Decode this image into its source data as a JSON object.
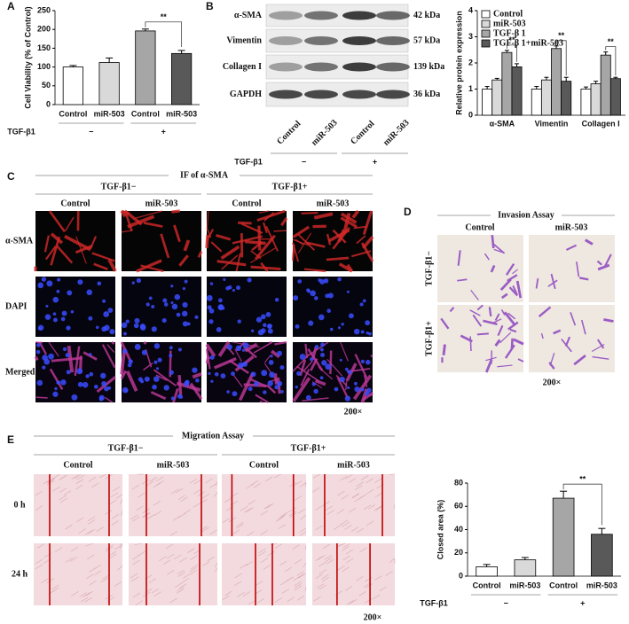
{
  "panel_labels": [
    "A",
    "B",
    "C",
    "D",
    "E"
  ],
  "chart_data": [
    {
      "type": "bar",
      "ylabel": "Cell Viability (% of Control)",
      "categories": [
        "Control",
        "miR-503",
        "Control",
        "miR-503"
      ],
      "values": [
        100,
        112,
        196,
        136
      ],
      "errors": [
        4,
        12,
        5,
        8
      ],
      "colors": [
        "#ffffff",
        "#d9d9d9",
        "#a6a6a6",
        "#595959"
      ],
      "ylim": [
        0,
        250
      ],
      "yticks": [
        0,
        50,
        100,
        150,
        200,
        250
      ],
      "group_label": "TGF-β1",
      "groups": [
        "−",
        "+"
      ],
      "annotations": [
        "**"
      ]
    },
    {
      "type": "bar",
      "ylabel": "Relative protein expression",
      "categories": [
        "α-SMA",
        "Vimentin",
        "Collagen I"
      ],
      "series": [
        {
          "name": "Control",
          "color": "#ffffff",
          "values": [
            1.0,
            1.0,
            1.0
          ],
          "errors": [
            0.1,
            0.1,
            0.08
          ]
        },
        {
          "name": "miR-503",
          "color": "#d9d9d9",
          "values": [
            1.35,
            1.35,
            1.2
          ],
          "errors": [
            0.06,
            0.1,
            0.1
          ]
        },
        {
          "name": "TGF-β 1",
          "color": "#a6a6a6",
          "values": [
            2.4,
            2.55,
            2.3
          ],
          "errors": [
            0.08,
            0.1,
            0.12
          ]
        },
        {
          "name": "TGF-β 1+miR-503",
          "color": "#595959",
          "values": [
            1.85,
            1.3,
            1.4
          ],
          "errors": [
            0.12,
            0.15,
            0.05
          ]
        }
      ],
      "ylim": [
        0,
        4
      ],
      "yticks": [
        0,
        1,
        2,
        3,
        4
      ],
      "legend": "upper left",
      "annotations": [
        "**",
        "**",
        "**"
      ]
    },
    {
      "type": "bar",
      "ylabel": "Closed area (%)",
      "categories": [
        "Control",
        "miR-503",
        "Control",
        "miR-503"
      ],
      "values": [
        8,
        14,
        67,
        36
      ],
      "errors": [
        2,
        2,
        6,
        5
      ],
      "colors": [
        "#ffffff",
        "#d9d9d9",
        "#a6a6a6",
        "#595959"
      ],
      "ylim": [
        0,
        80
      ],
      "yticks": [
        0,
        20,
        40,
        60,
        80
      ],
      "group_label": "TGF-β1",
      "groups": [
        "−",
        "+"
      ],
      "annotations": [
        "**"
      ]
    }
  ],
  "blot": {
    "proteins": [
      {
        "name": "α-SMA",
        "size": "42 kDa"
      },
      {
        "name": "Vimentin",
        "size": "57 kDa"
      },
      {
        "name": "Collagen I",
        "size": "139 kDa"
      },
      {
        "name": "GAPDH",
        "size": "36 kDa"
      }
    ],
    "lanes": [
      "Control",
      "miR-503",
      "Control",
      "miR-503"
    ],
    "group_label": "TGF-β1",
    "groups": [
      "−",
      "+"
    ]
  },
  "if_panel": {
    "title": "IF of α-SMA",
    "groups": [
      "TGF-β1−",
      "TGF-β1+"
    ],
    "columns": [
      "Control",
      "miR-503",
      "Control",
      "miR-503"
    ],
    "rows": [
      "α-SMA",
      "DAPI",
      "Merged"
    ],
    "magnification": "200×"
  },
  "invasion": {
    "title": "Invasion Assay",
    "columns": [
      "Control",
      "miR-503"
    ],
    "rows": [
      "TGF-β1−",
      "TGF-β1+"
    ],
    "magnification": "200×"
  },
  "migration": {
    "title": "Migration Assay",
    "groups": [
      "TGF-β1−",
      "TGF-β1+"
    ],
    "columns": [
      "Control",
      "miR-503",
      "Control",
      "miR-503"
    ],
    "rows": [
      "0 h",
      "24 h"
    ],
    "magnification": "200×"
  }
}
